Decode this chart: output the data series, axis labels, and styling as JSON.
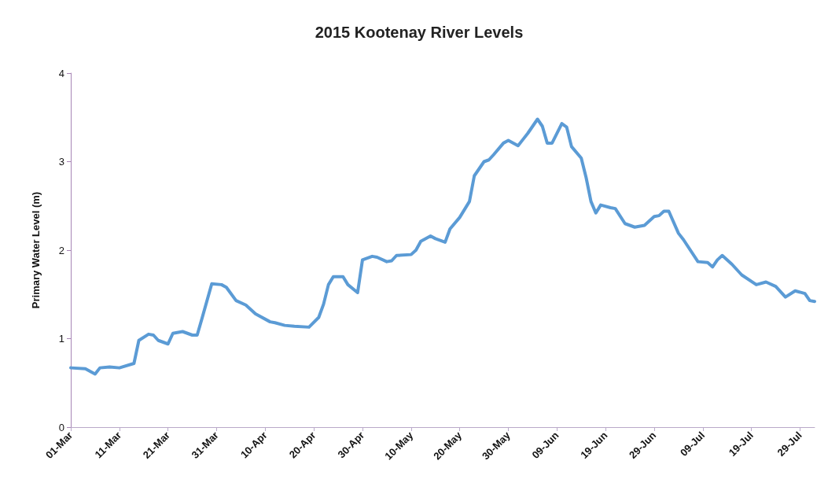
{
  "chart_data": {
    "type": "line",
    "title": "2015 Kootenay River Levels",
    "ylabel": "Primary Water Level (m)",
    "x": [
      "2015-03-01",
      "2015-03-04",
      "2015-03-06",
      "2015-03-07",
      "2015-03-09",
      "2015-03-11",
      "2015-03-14",
      "2015-03-15",
      "2015-03-17",
      "2015-03-18",
      "2015-03-19",
      "2015-03-20",
      "2015-03-21",
      "2015-03-22",
      "2015-03-24",
      "2015-03-26",
      "2015-03-27",
      "2015-03-28",
      "2015-03-30",
      "2015-04-01",
      "2015-04-02",
      "2015-04-04",
      "2015-04-06",
      "2015-04-08",
      "2015-04-11",
      "2015-04-12",
      "2015-04-14",
      "2015-04-16",
      "2015-04-19",
      "2015-04-21",
      "2015-04-22",
      "2015-04-23",
      "2015-04-24",
      "2015-04-26",
      "2015-04-27",
      "2015-04-29",
      "2015-04-30",
      "2015-05-02",
      "2015-05-03",
      "2015-05-05",
      "2015-05-06",
      "2015-05-07",
      "2015-05-10",
      "2015-05-11",
      "2015-05-12",
      "2015-05-14",
      "2015-05-15",
      "2015-05-17",
      "2015-05-18",
      "2015-05-20",
      "2015-05-22",
      "2015-05-23",
      "2015-05-25",
      "2015-05-26",
      "2015-05-27",
      "2015-05-29",
      "2015-05-30",
      "2015-06-01",
      "2015-06-02",
      "2015-06-03",
      "2015-06-05",
      "2015-06-06",
      "2015-06-07",
      "2015-06-08",
      "2015-06-10",
      "2015-06-11",
      "2015-06-12",
      "2015-06-14",
      "2015-06-15",
      "2015-06-16",
      "2015-06-17",
      "2015-06-18",
      "2015-06-20",
      "2015-06-21",
      "2015-06-23",
      "2015-06-25",
      "2015-06-27",
      "2015-06-29",
      "2015-06-30",
      "2015-07-01",
      "2015-07-02",
      "2015-07-04",
      "2015-07-05",
      "2015-07-08",
      "2015-07-10",
      "2015-07-11",
      "2015-07-12",
      "2015-07-13",
      "2015-07-15",
      "2015-07-17",
      "2015-07-20",
      "2015-07-22",
      "2015-07-24",
      "2015-07-26",
      "2015-07-28",
      "2015-07-30",
      "2015-07-31",
      "2015-08-01"
    ],
    "series": [
      {
        "color": "#5b9bd5",
        "values": [
          0.67,
          0.66,
          0.6,
          0.67,
          0.68,
          0.67,
          0.72,
          0.98,
          1.05,
          1.04,
          0.98,
          0.96,
          0.94,
          1.06,
          1.08,
          1.04,
          1.04,
          1.23,
          1.62,
          1.61,
          1.58,
          1.43,
          1.38,
          1.28,
          1.19,
          1.18,
          1.15,
          1.14,
          1.13,
          1.24,
          1.39,
          1.61,
          1.7,
          1.7,
          1.61,
          1.52,
          1.89,
          1.93,
          1.92,
          1.87,
          1.88,
          1.94,
          1.95,
          2.0,
          2.1,
          2.16,
          2.13,
          2.09,
          2.24,
          2.37,
          2.55,
          2.84,
          3.0,
          3.02,
          3.08,
          3.21,
          3.24,
          3.18,
          3.25,
          3.32,
          3.48,
          3.4,
          3.21,
          3.21,
          3.43,
          3.39,
          3.17,
          3.04,
          2.82,
          2.55,
          2.42,
          2.51,
          2.48,
          2.47,
          2.3,
          2.26,
          2.28,
          2.38,
          2.39,
          2.44,
          2.44,
          2.19,
          2.12,
          1.87,
          1.86,
          1.81,
          1.89,
          1.94,
          1.84,
          1.72,
          1.61,
          1.64,
          1.59,
          1.47,
          1.54,
          1.51,
          1.43,
          1.42
        ]
      }
    ],
    "xlim": [
      "2015-03-01",
      "2015-08-01"
    ],
    "xticks": [
      {
        "value": "2015-03-01",
        "label": "01-Mar"
      },
      {
        "value": "2015-03-11",
        "label": "11-Mar"
      },
      {
        "value": "2015-03-21",
        "label": "21-Mar"
      },
      {
        "value": "2015-03-31",
        "label": "31-Mar"
      },
      {
        "value": "2015-04-10",
        "label": "10-Apr"
      },
      {
        "value": "2015-04-20",
        "label": "20-Apr"
      },
      {
        "value": "2015-04-30",
        "label": "30-Apr"
      },
      {
        "value": "2015-05-10",
        "label": "10-May"
      },
      {
        "value": "2015-05-20",
        "label": "20-May"
      },
      {
        "value": "2015-05-30",
        "label": "30-May"
      },
      {
        "value": "2015-06-09",
        "label": "09-Jun"
      },
      {
        "value": "2015-06-19",
        "label": "19-Jun"
      },
      {
        "value": "2015-06-29",
        "label": "29-Jun"
      },
      {
        "value": "2015-07-09",
        "label": "09-Jul"
      },
      {
        "value": "2015-07-19",
        "label": "19-Jul"
      },
      {
        "value": "2015-07-29",
        "label": "29-Jul"
      }
    ],
    "ylim": [
      0,
      4
    ],
    "yticks": [
      0,
      1,
      2,
      3,
      4
    ],
    "grid": false,
    "marker": "none",
    "line_style": "solid"
  }
}
